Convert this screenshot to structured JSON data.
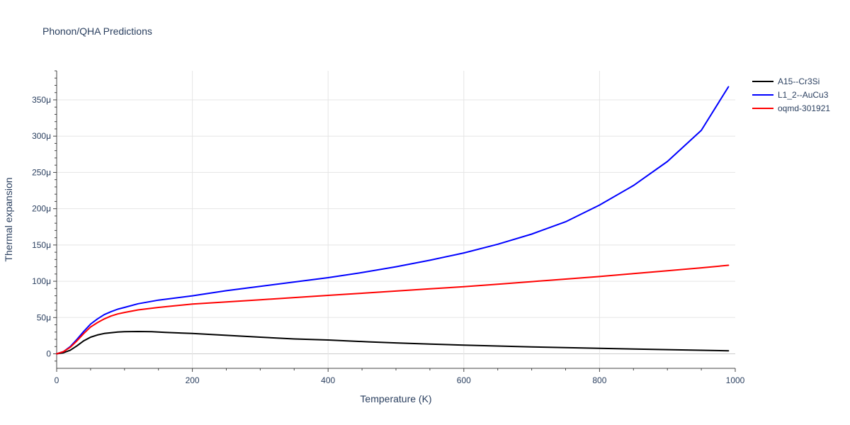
{
  "chart_data": {
    "type": "line",
    "title": "Phonon/QHA Predictions",
    "xlabel": "Temperature (K)",
    "ylabel": "Thermal expansion",
    "xlim": [
      0,
      1000
    ],
    "ylim": [
      -20,
      390
    ],
    "grid": true,
    "legend_position": "top-right",
    "x_ticks": [
      {
        "value": 0,
        "label": "0"
      },
      {
        "value": 200,
        "label": "200"
      },
      {
        "value": 400,
        "label": "400"
      },
      {
        "value": 600,
        "label": "600"
      },
      {
        "value": 800,
        "label": "800"
      },
      {
        "value": 1000,
        "label": "1000"
      }
    ],
    "y_ticks": [
      {
        "value": 0,
        "label": "0"
      },
      {
        "value": 50,
        "label": "50μ"
      },
      {
        "value": 100,
        "label": "100μ"
      },
      {
        "value": 150,
        "label": "150μ"
      },
      {
        "value": 200,
        "label": "200μ"
      },
      {
        "value": 250,
        "label": "250μ"
      },
      {
        "value": 300,
        "label": "300μ"
      },
      {
        "value": 350,
        "label": "350μ"
      }
    ],
    "series": [
      {
        "name": "A15--Cr3Si",
        "color": "#000000",
        "x": [
          0,
          10,
          20,
          30,
          40,
          50,
          60,
          70,
          80,
          90,
          100,
          120,
          140,
          160,
          200,
          250,
          300,
          350,
          400,
          460,
          500,
          550,
          600,
          700,
          800,
          900,
          990
        ],
        "y": [
          0,
          1.5,
          5,
          11,
          18,
          23,
          26,
          28,
          29,
          30,
          30.5,
          30.8,
          30.5,
          29.5,
          28,
          25.5,
          23,
          20.5,
          19,
          16.5,
          15,
          13.5,
          12,
          9.5,
          7.5,
          5.8,
          4.2
        ]
      },
      {
        "name": "L1_2--AuCu3",
        "color": "#0000ff",
        "x": [
          0,
          10,
          20,
          30,
          40,
          50,
          60,
          70,
          80,
          90,
          100,
          120,
          150,
          200,
          250,
          300,
          350,
          400,
          450,
          500,
          550,
          600,
          650,
          700,
          750,
          800,
          850,
          900,
          950,
          990
        ],
        "y": [
          0,
          3,
          10,
          20,
          31,
          41,
          48,
          54,
          58,
          61.5,
          64,
          69,
          74,
          80,
          87,
          93,
          99,
          105,
          112,
          120,
          129,
          139,
          151,
          165,
          182,
          205,
          232,
          265,
          308,
          368
        ]
      },
      {
        "name": "oqmd-301921",
        "color": "#ff0000",
        "x": [
          0,
          10,
          20,
          30,
          40,
          50,
          60,
          70,
          80,
          90,
          100,
          120,
          150,
          200,
          250,
          300,
          350,
          400,
          450,
          500,
          550,
          600,
          650,
          700,
          750,
          800,
          850,
          900,
          950,
          990
        ],
        "y": [
          0,
          3,
          9,
          18,
          28,
          37,
          43,
          48,
          52,
          55,
          57,
          60.5,
          64,
          68.5,
          71.5,
          74.5,
          77.5,
          80.5,
          83.5,
          86.5,
          89.5,
          92.5,
          96,
          99.5,
          103,
          106.5,
          110.5,
          114.5,
          118.5,
          122
        ]
      }
    ]
  }
}
